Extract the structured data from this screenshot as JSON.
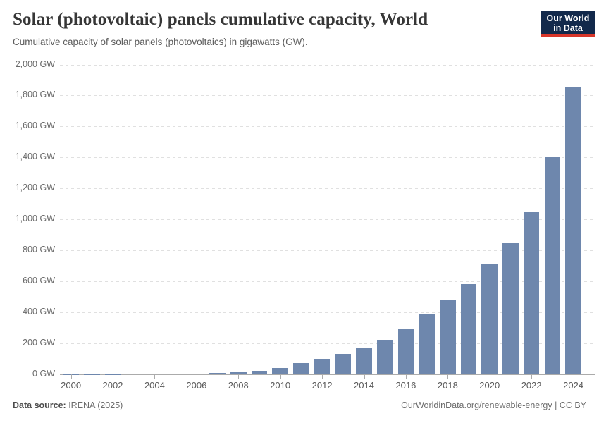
{
  "header": {
    "title": "Solar (photovoltaic) panels cumulative capacity, World",
    "subtitle": "Cumulative capacity of solar panels (photovoltaics) in gigawatts (GW)."
  },
  "logo": {
    "line1": "Our World",
    "line2": "in Data",
    "background_color": "#12294b",
    "underline_color": "#d8362a"
  },
  "footer": {
    "source_label": "Data source:",
    "source_value": " IRENA (2025)",
    "url": "OurWorldinData.org/renewable-energy",
    "separator": " | ",
    "license": "CC BY"
  },
  "chart_data": {
    "type": "bar",
    "title": "Solar (photovoltaic) panels cumulative capacity, World",
    "subtitle": "Cumulative capacity of solar panels (photovoltaics) in gigawatts (GW).",
    "xlabel": "",
    "ylabel": "",
    "unit": "GW",
    "categories": [
      2000,
      2001,
      2002,
      2003,
      2004,
      2005,
      2006,
      2007,
      2008,
      2009,
      2010,
      2011,
      2012,
      2013,
      2014,
      2015,
      2016,
      2017,
      2018,
      2019,
      2020,
      2021,
      2022,
      2023,
      2024
    ],
    "values": [
      1.2,
      1.5,
      2,
      2.6,
      3.7,
      5.1,
      6.7,
      9.4,
      16,
      23,
      41,
      73,
      101,
      134,
      172,
      221,
      290,
      386,
      477,
      581,
      711,
      851,
      1046,
      1400,
      1855
    ],
    "ylim": [
      0,
      2000
    ],
    "ytick_values": [
      0,
      200,
      400,
      600,
      800,
      1000,
      1200,
      1400,
      1600,
      1800,
      2000
    ],
    "ytick_labels": [
      "0 GW",
      "200 GW",
      "400 GW",
      "600 GW",
      "800 GW",
      "1,000 GW",
      "1,200 GW",
      "1,400 GW",
      "1,600 GW",
      "1,800 GW",
      "2,000 GW"
    ],
    "xtick_labels": [
      "2000",
      "2002",
      "2004",
      "2006",
      "2008",
      "2010",
      "2012",
      "2014",
      "2016",
      "2018",
      "2020",
      "2022",
      "2024"
    ],
    "grid": "horizontal-dashed",
    "legend": "none",
    "bar_color": "#6e87ad"
  }
}
